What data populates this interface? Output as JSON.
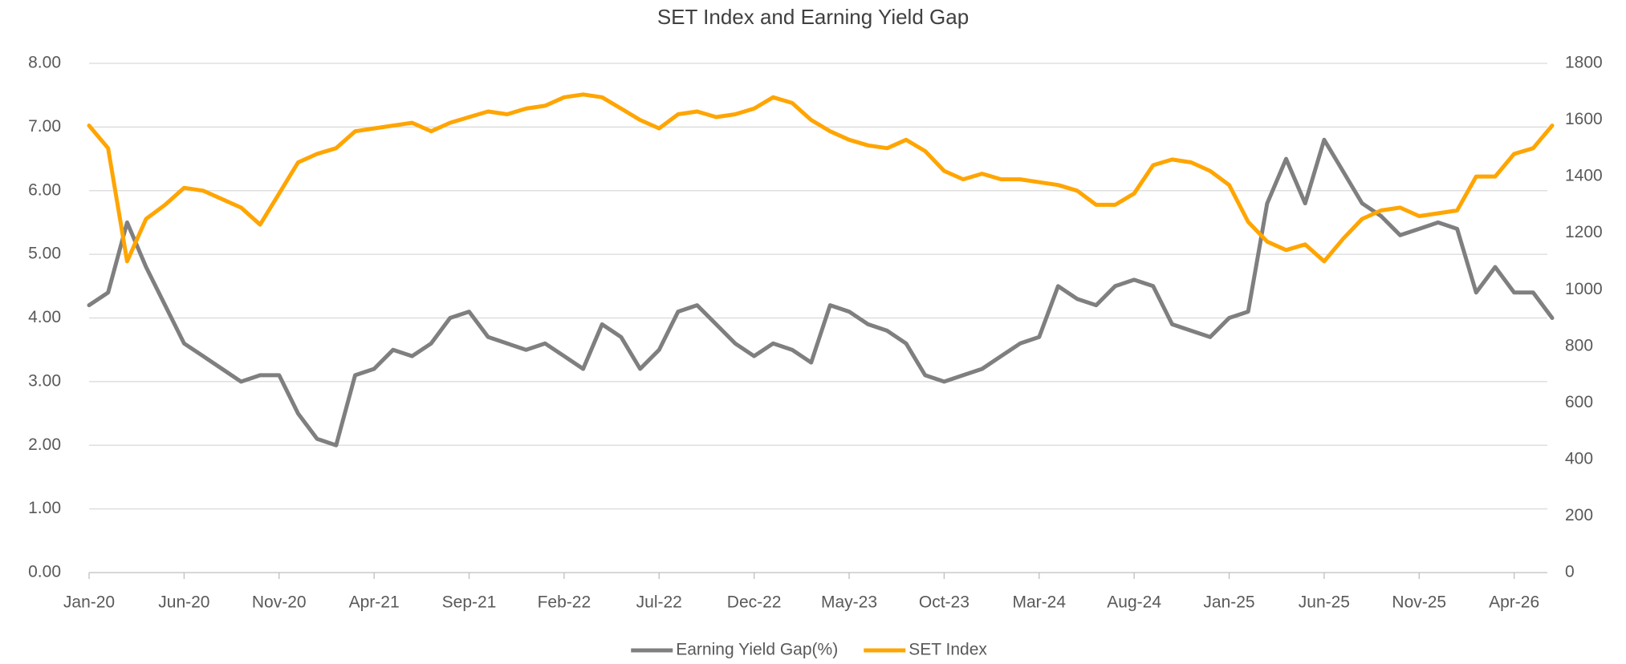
{
  "chart_data": {
    "type": "line",
    "title": "SET Index and Earning Yield Gap",
    "categories": [
      "Jan-20",
      null,
      null,
      null,
      null,
      "Jun-20",
      null,
      null,
      null,
      null,
      "Nov-20",
      null,
      null,
      null,
      null,
      "Apr-21",
      null,
      null,
      null,
      null,
      "Sep-21",
      null,
      null,
      null,
      null,
      "Feb-22",
      null,
      null,
      null,
      null,
      "Jul-22",
      null,
      null,
      null,
      null,
      "Dec-22",
      null,
      null,
      null,
      null,
      "May-23",
      null,
      null,
      null,
      null,
      "Oct-23",
      null,
      null,
      null,
      null,
      "Mar-24",
      null,
      null,
      null,
      null,
      "Aug-24",
      null,
      null,
      null,
      null,
      "Jan-25",
      null,
      null,
      null,
      null,
      "Jun-25",
      null,
      null,
      null,
      null,
      "Nov-25",
      null,
      null,
      null,
      null,
      "Apr-26",
      null,
      null
    ],
    "series": [
      {
        "name": "Earning Yield Gap(%)",
        "color": "#7f7f7f",
        "values": [
          4.2,
          4.4,
          5.5,
          4.8,
          4.2,
          3.6,
          3.4,
          3.2,
          3.0,
          3.1,
          3.1,
          2.5,
          2.1,
          2.0,
          3.1,
          3.2,
          3.5,
          3.4,
          3.6,
          4.0,
          4.1,
          3.7,
          3.6,
          3.5,
          3.6,
          3.4,
          3.2,
          3.9,
          3.7,
          3.2,
          3.5,
          4.1,
          4.2,
          3.9,
          3.6,
          3.4,
          3.6,
          3.5,
          3.3,
          4.2,
          4.1,
          3.9,
          3.8,
          3.6,
          3.1,
          3.0,
          3.1,
          3.2,
          3.4,
          3.6,
          3.7,
          4.5,
          4.3,
          4.2,
          4.5,
          4.6,
          4.5,
          3.9,
          3.8,
          3.7,
          4.0,
          4.1,
          5.8,
          6.5,
          5.8,
          6.8,
          6.3,
          5.8,
          5.6,
          5.3,
          5.4,
          5.5,
          5.4,
          4.4,
          4.8,
          4.4,
          4.4,
          4.0
        ]
      },
      {
        "name": "SET Index",
        "color": "#ffa500",
        "axis": "y2",
        "values": [
          1580,
          1500,
          1100,
          1250,
          1300,
          1360,
          1350,
          1320,
          1290,
          1230,
          1340,
          1450,
          1480,
          1500,
          1560,
          1570,
          1580,
          1590,
          1560,
          1590,
          1610,
          1630,
          1620,
          1640,
          1650,
          1680,
          1690,
          1680,
          1640,
          1600,
          1570,
          1620,
          1630,
          1610,
          1620,
          1640,
          1680,
          1660,
          1600,
          1560,
          1530,
          1510,
          1500,
          1530,
          1490,
          1420,
          1390,
          1410,
          1390,
          1390,
          1380,
          1370,
          1350,
          1300,
          1300,
          1340,
          1440,
          1460,
          1450,
          1420,
          1370,
          1240,
          1170,
          1140,
          1160,
          1100,
          1180,
          1250,
          1280,
          1290,
          1260,
          1270,
          1280,
          1400,
          1400,
          1480,
          1500,
          1580
        ]
      }
    ],
    "ylim": [
      0,
      8
    ],
    "yticks": [
      {
        "value": 0,
        "label": "0.00"
      },
      {
        "value": 1,
        "label": "1.00"
      },
      {
        "value": 2,
        "label": "2.00"
      },
      {
        "value": 3,
        "label": "3.00"
      },
      {
        "value": 4,
        "label": "4.00"
      },
      {
        "value": 5,
        "label": "5.00"
      },
      {
        "value": 6,
        "label": "6.00"
      },
      {
        "value": 7,
        "label": "7.00"
      },
      {
        "value": 8,
        "label": "8.00"
      }
    ],
    "y2lim": [
      0,
      1800
    ],
    "y2ticks": [
      0,
      200,
      400,
      600,
      800,
      1000,
      1200,
      1400,
      1600,
      1800
    ],
    "grid": true,
    "legend": "bottom"
  }
}
